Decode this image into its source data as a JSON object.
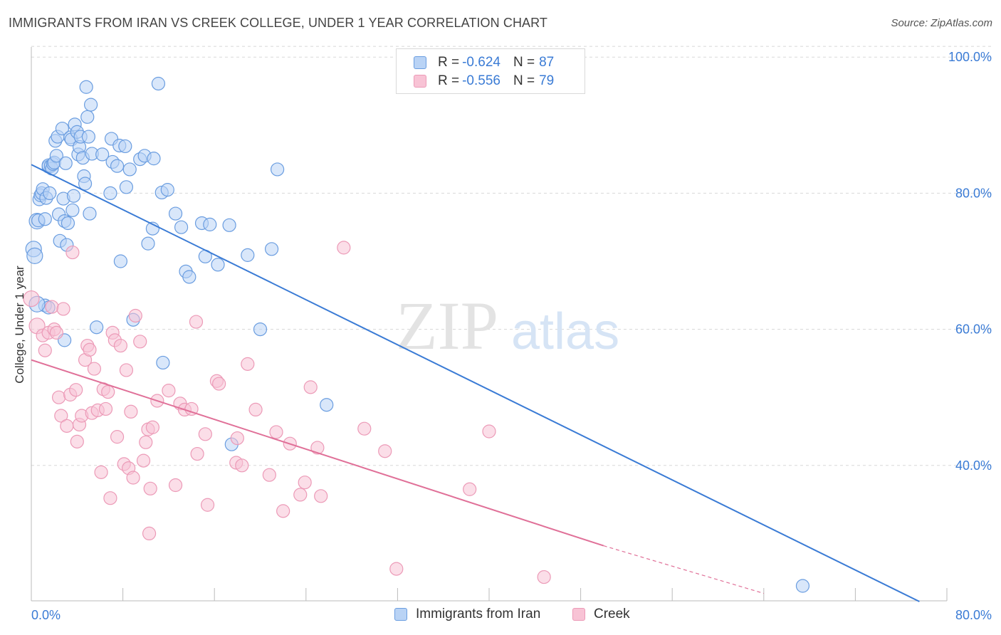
{
  "title": "IMMIGRANTS FROM IRAN VS CREEK COLLEGE, UNDER 1 YEAR CORRELATION CHART",
  "source": "Source: ZipAtlas.com",
  "watermark": {
    "zip": "ZIP",
    "atlas": "atlas"
  },
  "colors": {
    "blue": "#3a7bd5",
    "blue_fill": "#b9d3f5",
    "blue_stroke": "#6a9de0",
    "pink": "#e07098",
    "pink_fill": "#f8c3d5",
    "pink_stroke": "#ec9ab7",
    "grid": "#d8d8d8",
    "axis_text": "#3a7bd5"
  },
  "legend": {
    "rows": [
      {
        "r_label": "R =",
        "r_value": "-0.624",
        "n_label": "N =",
        "n_value": "87"
      },
      {
        "r_label": "R =",
        "r_value": "-0.556",
        "n_label": "N =",
        "n_value": "79"
      }
    ]
  },
  "bottom_legend": {
    "series1": "Immigrants from Iran",
    "series2": "Creek"
  },
  "chart_data": {
    "type": "scatter",
    "title": "IMMIGRANTS FROM IRAN VS CREEK COLLEGE, UNDER 1 YEAR CORRELATION CHART",
    "xlabel": "",
    "ylabel": "College, Under 1 year",
    "xlim": [
      0,
      80
    ],
    "ylim": [
      20,
      102
    ],
    "x_tick_labels": [
      "0.0%",
      "80.0%"
    ],
    "y_ticks": [
      40,
      60,
      80,
      100
    ],
    "y_tick_labels": [
      "40.0%",
      "60.0%",
      "80.0%",
      "100.0%"
    ],
    "grid": true,
    "series": [
      {
        "name": "Immigrants from Iran",
        "r": -0.624,
        "n": 87,
        "trend": {
          "x1": 0,
          "y1": 84.2,
          "x2": 77.6,
          "y2": 20
        },
        "points": [
          [
            0.2,
            71.8
          ],
          [
            0.3,
            70.8
          ],
          [
            0.5,
            75.9
          ],
          [
            0.6,
            76.0
          ],
          [
            0.7,
            79.1
          ],
          [
            0.8,
            79.7
          ],
          [
            0.9,
            80.0
          ],
          [
            1.0,
            80.6
          ],
          [
            1.2,
            76.2
          ],
          [
            1.3,
            79.3
          ],
          [
            1.5,
            83.9
          ],
          [
            1.5,
            84.1
          ],
          [
            1.6,
            80.0
          ],
          [
            1.7,
            84.0
          ],
          [
            1.8,
            83.6
          ],
          [
            1.9,
            84.3
          ],
          [
            2.0,
            84.5
          ],
          [
            2.1,
            87.7
          ],
          [
            2.2,
            85.5
          ],
          [
            2.3,
            88.3
          ],
          [
            2.4,
            76.9
          ],
          [
            2.5,
            73.0
          ],
          [
            2.7,
            89.5
          ],
          [
            2.8,
            79.2
          ],
          [
            2.9,
            75.9
          ],
          [
            3.0,
            84.4
          ],
          [
            3.1,
            72.4
          ],
          [
            3.2,
            75.6
          ],
          [
            3.4,
            88.2
          ],
          [
            3.5,
            87.9
          ],
          [
            3.6,
            77.5
          ],
          [
            3.7,
            79.6
          ],
          [
            3.8,
            90.1
          ],
          [
            4.0,
            89.0
          ],
          [
            4.1,
            85.7
          ],
          [
            4.2,
            86.8
          ],
          [
            4.3,
            88.3
          ],
          [
            4.5,
            85.2
          ],
          [
            4.6,
            82.5
          ],
          [
            4.7,
            81.4
          ],
          [
            4.8,
            95.6
          ],
          [
            4.9,
            91.2
          ],
          [
            5.0,
            88.3
          ],
          [
            5.1,
            77.0
          ],
          [
            5.2,
            93.0
          ],
          [
            5.3,
            85.8
          ],
          [
            6.2,
            85.7
          ],
          [
            6.9,
            80.0
          ],
          [
            7.0,
            88.0
          ],
          [
            7.1,
            84.6
          ],
          [
            7.5,
            84.0
          ],
          [
            7.7,
            87.0
          ],
          [
            7.8,
            70.0
          ],
          [
            8.3,
            80.9
          ],
          [
            8.6,
            83.5
          ],
          [
            8.2,
            86.9
          ],
          [
            9.5,
            85.0
          ],
          [
            9.9,
            85.5
          ],
          [
            10.2,
            72.6
          ],
          [
            10.6,
            74.8
          ],
          [
            10.7,
            85.1
          ],
          [
            11.1,
            96.1
          ],
          [
            11.4,
            80.1
          ],
          [
            11.9,
            80.5
          ],
          [
            12.6,
            77.0
          ],
          [
            13.1,
            75.0
          ],
          [
            13.5,
            68.5
          ],
          [
            13.8,
            67.7
          ],
          [
            14.9,
            75.6
          ],
          [
            15.2,
            70.7
          ],
          [
            15.6,
            75.4
          ],
          [
            16.3,
            69.5
          ],
          [
            17.3,
            75.3
          ],
          [
            18.9,
            70.9
          ],
          [
            21.0,
            71.8
          ],
          [
            21.5,
            83.5
          ],
          [
            1.2,
            63.5
          ],
          [
            1.5,
            63.2
          ],
          [
            2.9,
            58.4
          ],
          [
            5.7,
            60.3
          ],
          [
            8.9,
            61.4
          ],
          [
            11.5,
            55.1
          ],
          [
            17.5,
            43.1
          ],
          [
            20.0,
            60.0
          ],
          [
            25.8,
            48.9
          ],
          [
            67.4,
            22.3
          ],
          [
            0.5,
            63.7
          ]
        ]
      },
      {
        "name": "Creek",
        "r": -0.556,
        "n": 79,
        "trend": {
          "x1": 0,
          "y1": 55.5,
          "x2": 50,
          "y2": 28.2
        },
        "trend_dashed": {
          "x1": 50,
          "y1": 28.2,
          "x2": 64,
          "y2": 21.2
        },
        "points": [
          [
            0.0,
            64.5
          ],
          [
            0.5,
            60.5
          ],
          [
            1.0,
            59.1
          ],
          [
            1.2,
            56.9
          ],
          [
            1.5,
            59.5
          ],
          [
            1.8,
            63.3
          ],
          [
            2.0,
            60.0
          ],
          [
            2.2,
            59.5
          ],
          [
            2.4,
            50.0
          ],
          [
            2.6,
            47.3
          ],
          [
            2.8,
            63.0
          ],
          [
            3.1,
            45.8
          ],
          [
            3.4,
            50.4
          ],
          [
            3.6,
            71.3
          ],
          [
            3.9,
            51.1
          ],
          [
            4.2,
            46.0
          ],
          [
            4.4,
            47.3
          ],
          [
            4.7,
            55.5
          ],
          [
            4.9,
            57.6
          ],
          [
            5.1,
            57.0
          ],
          [
            5.3,
            47.7
          ],
          [
            5.5,
            54.2
          ],
          [
            5.8,
            48.1
          ],
          [
            6.1,
            39.0
          ],
          [
            6.3,
            51.2
          ],
          [
            6.5,
            48.3
          ],
          [
            6.7,
            50.8
          ],
          [
            6.9,
            35.2
          ],
          [
            7.1,
            59.5
          ],
          [
            7.3,
            58.4
          ],
          [
            7.5,
            44.2
          ],
          [
            7.8,
            57.6
          ],
          [
            8.1,
            40.2
          ],
          [
            8.3,
            54.0
          ],
          [
            8.5,
            39.6
          ],
          [
            8.7,
            47.9
          ],
          [
            8.9,
            38.2
          ],
          [
            9.1,
            62.0
          ],
          [
            9.5,
            58.2
          ],
          [
            9.8,
            40.7
          ],
          [
            10.0,
            43.4
          ],
          [
            10.2,
            45.3
          ],
          [
            10.4,
            36.6
          ],
          [
            10.6,
            45.6
          ],
          [
            11.0,
            49.5
          ],
          [
            12.0,
            51.0
          ],
          [
            12.6,
            37.1
          ],
          [
            13.0,
            49.1
          ],
          [
            13.4,
            48.2
          ],
          [
            14.0,
            48.3
          ],
          [
            14.4,
            61.1
          ],
          [
            14.5,
            41.7
          ],
          [
            15.2,
            44.6
          ],
          [
            15.4,
            34.2
          ],
          [
            16.2,
            52.4
          ],
          [
            16.4,
            52.0
          ],
          [
            17.9,
            40.4
          ],
          [
            18.4,
            40.0
          ],
          [
            18.9,
            54.9
          ],
          [
            19.6,
            48.2
          ],
          [
            20.8,
            38.6
          ],
          [
            21.4,
            44.9
          ],
          [
            22.0,
            33.3
          ],
          [
            22.6,
            43.2
          ],
          [
            23.5,
            35.7
          ],
          [
            23.9,
            37.5
          ],
          [
            24.4,
            51.5
          ],
          [
            25.0,
            42.6
          ],
          [
            25.3,
            35.5
          ],
          [
            27.3,
            72.0
          ],
          [
            29.1,
            45.4
          ],
          [
            30.9,
            42.1
          ],
          [
            31.9,
            24.8
          ],
          [
            38.3,
            36.5
          ],
          [
            40.0,
            45.0
          ],
          [
            44.8,
            23.6
          ],
          [
            18.0,
            44.0
          ],
          [
            10.3,
            30.0
          ],
          [
            4.0,
            43.5
          ]
        ]
      }
    ]
  }
}
